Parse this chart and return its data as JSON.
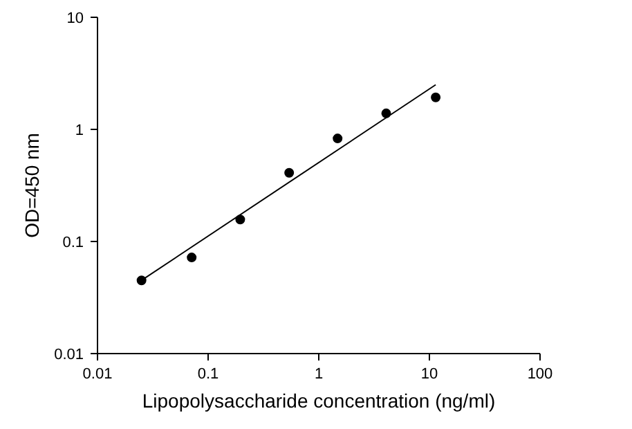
{
  "chart_data": {
    "type": "scatter",
    "xlabel": "Lipopolysaccharide concentration (ng/ml)",
    "ylabel": "OD=450 nm",
    "log": "xy",
    "xlim": [
      0.01,
      100
    ],
    "ylim": [
      0.01,
      10
    ],
    "xticks": [
      0.01,
      0.1,
      1,
      10,
      100
    ],
    "yticks": [
      0.01,
      0.1,
      1,
      10
    ],
    "grid": false,
    "series": [
      {
        "color": "#000000",
        "marker": "circle",
        "x": [
          0.025,
          0.071,
          0.195,
          0.54,
          1.48,
          4.07,
          11.4
        ],
        "values": [
          0.045,
          0.072,
          0.157,
          0.41,
          0.83,
          1.39,
          1.93
        ]
      },
      {
        "type": "line",
        "color": "#000000",
        "line_style": "solid",
        "x": [
          0.025,
          11.4
        ],
        "values": [
          0.045,
          2.5
        ]
      }
    ]
  }
}
